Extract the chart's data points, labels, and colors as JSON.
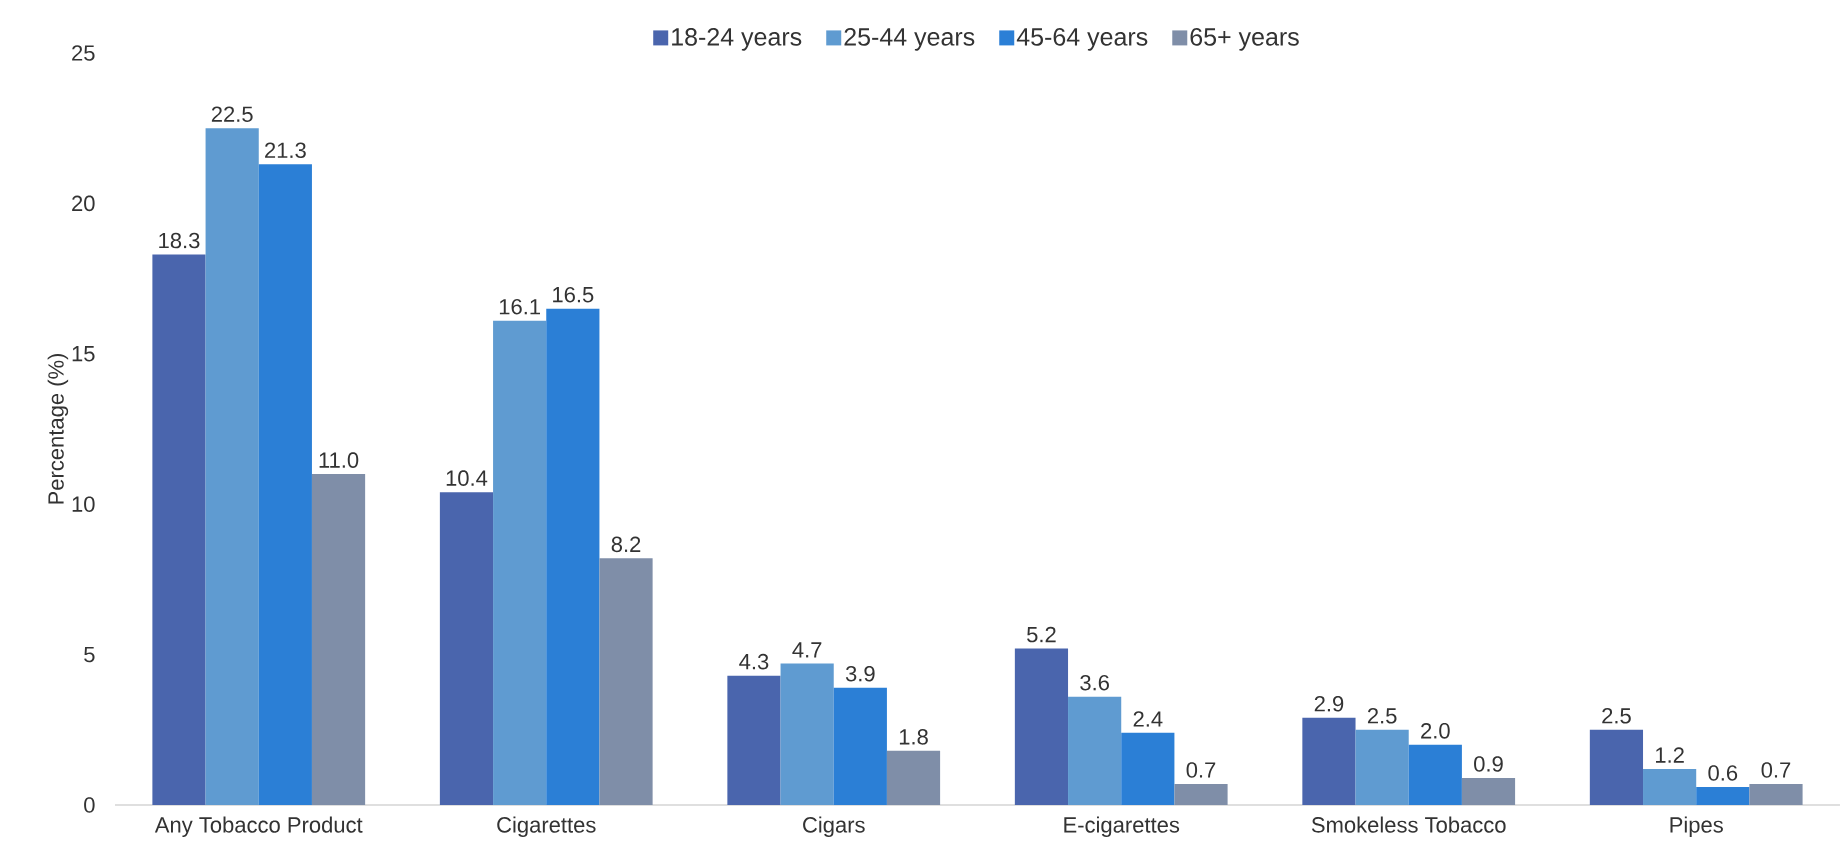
{
  "chart_data": {
    "type": "bar",
    "ylabel": "Percentage (%)",
    "categories": [
      "Any Tobacco Product",
      "Cigarettes",
      "Cigars",
      "E-cigarettes",
      "Smokeless Tobacco",
      "Pipes"
    ],
    "series": [
      {
        "name": "18-24 years",
        "color": "#4a65ad",
        "values": [
          18.3,
          10.4,
          4.3,
          5.2,
          2.9,
          2.5
        ],
        "value_labels": [
          "18.3",
          "10.4",
          "4.3",
          "5.2",
          "2.9",
          "2.5"
        ]
      },
      {
        "name": "25-44 years",
        "color": "#5f9bd1",
        "values": [
          22.5,
          16.1,
          4.7,
          3.6,
          2.5,
          1.2
        ],
        "value_labels": [
          "22.5",
          "16.1",
          "4.7",
          "3.6",
          "2.5",
          "1.2"
        ]
      },
      {
        "name": "45-64 years",
        "color": "#2b7fd6",
        "values": [
          21.3,
          16.5,
          3.9,
          2.4,
          2.0,
          0.6
        ],
        "value_labels": [
          "21.3",
          "16.5",
          "3.9",
          "2.4",
          "2.0",
          "0.6"
        ]
      },
      {
        "name": "65+ years",
        "color": "#7f8ea8",
        "values": [
          11.0,
          8.2,
          1.8,
          0.7,
          0.9,
          0.7
        ],
        "value_labels": [
          "11.0",
          "8.2",
          "1.8",
          "0.7",
          "0.9",
          "0.7"
        ]
      }
    ],
    "ylim": [
      0,
      25
    ],
    "yticks": [
      0,
      5,
      10,
      15,
      20,
      25
    ],
    "legend": "top"
  }
}
